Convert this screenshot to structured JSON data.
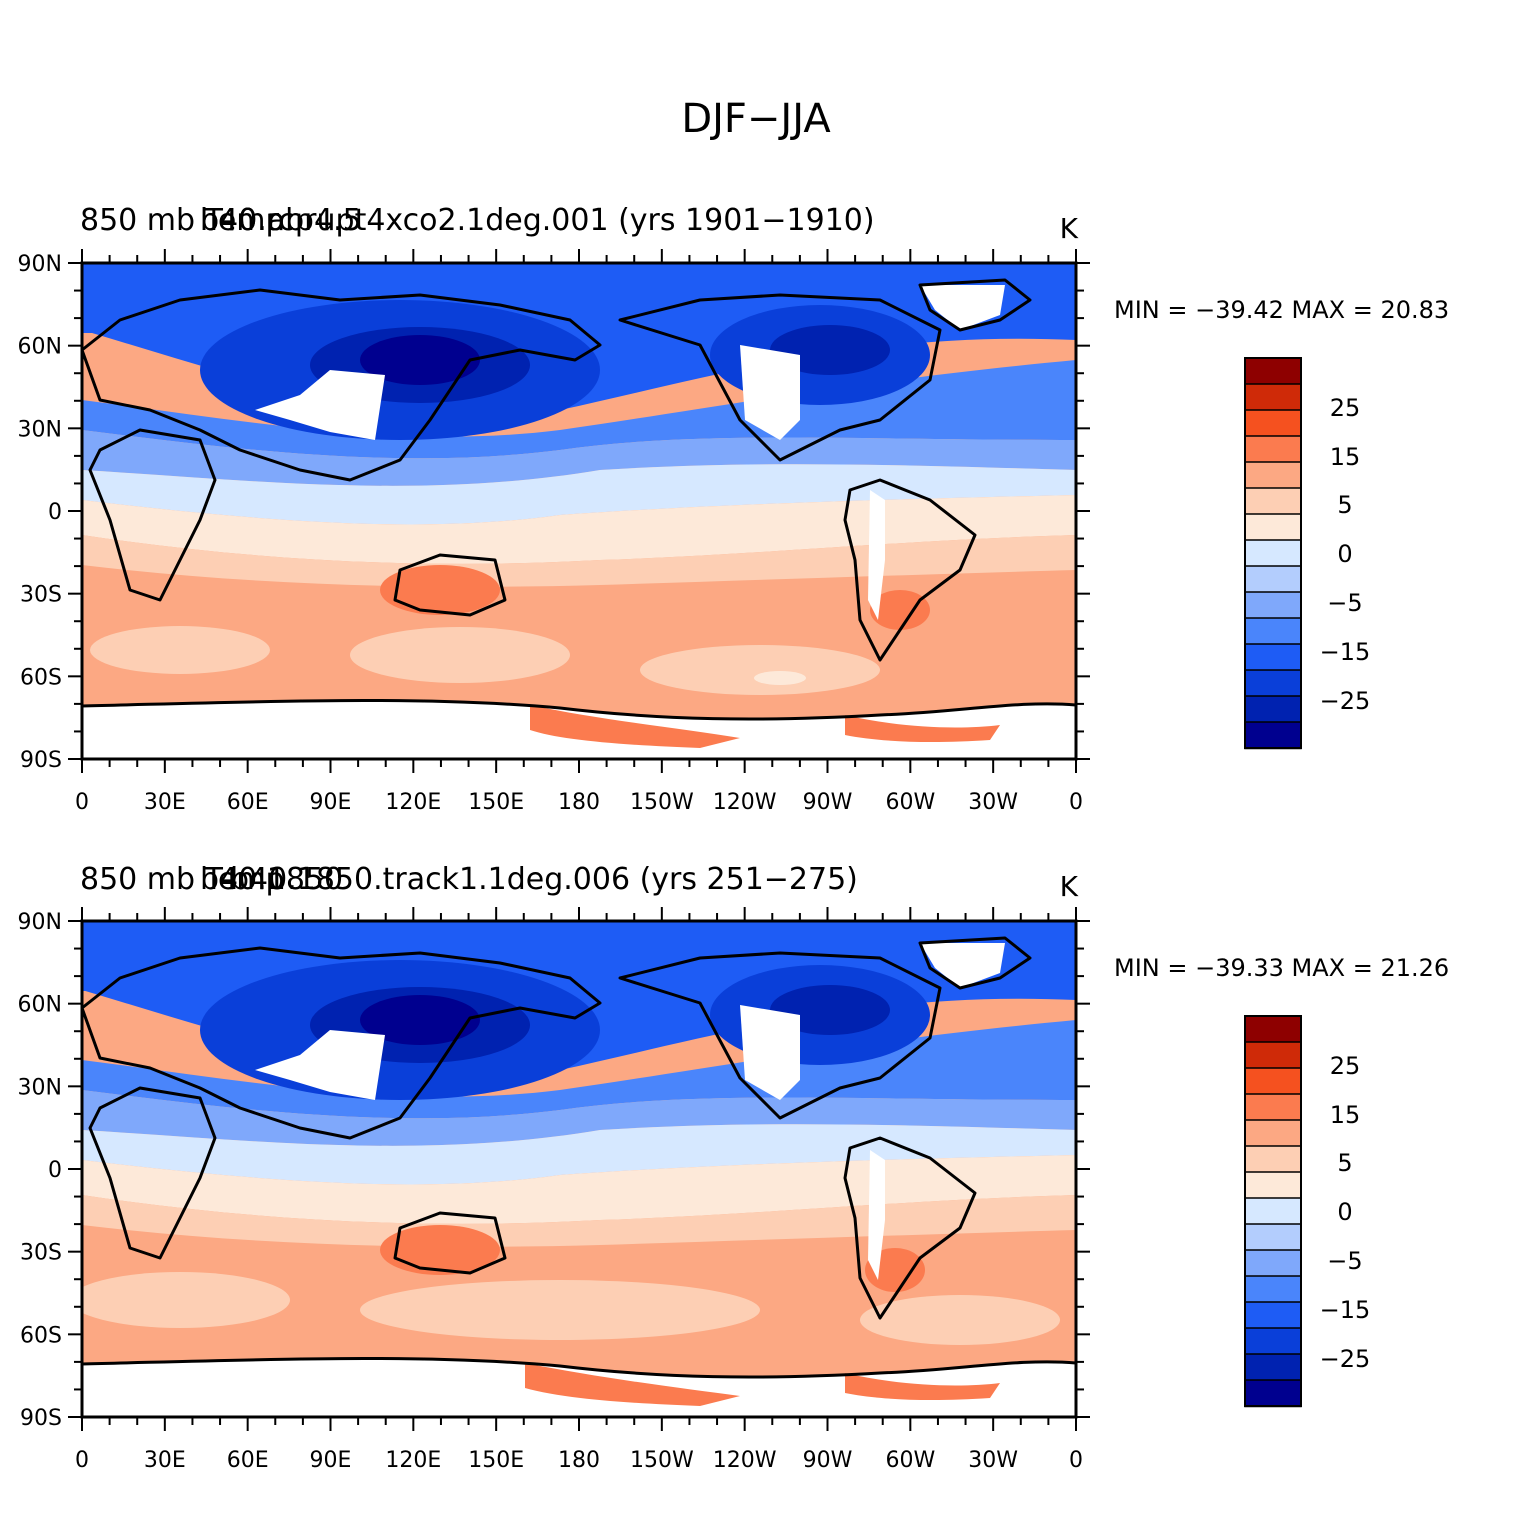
{
  "figure_title": "DJF−JJA",
  "colorbar_levels": [
    "25",
    "15",
    "5",
    "0",
    "−5",
    "−15",
    "−25"
  ],
  "colors": {
    "levels": [
      "#00008f",
      "#0022b0",
      "#0a3fd9",
      "#1e5cf5",
      "#4a85fb",
      "#7fa8fb",
      "#b3cdfd",
      "#d6e8ff",
      "#fde9d9",
      "#fdcfb4",
      "#fca883",
      "#fb7b4f",
      "#f5511f",
      "#cf2a08",
      "#8e0000"
    ],
    "land_masked": "#ffffff",
    "coastline": "#000000"
  },
  "chart_data": [
    {
      "type": "map",
      "title_left": "850 mb Temp",
      "title_center": "b40.rcp4.5",
      "title_run": "b40.abrupt4xco2.1deg.001 (yrs 1901−1910)",
      "units": "K",
      "stats": "MIN = −39.42  MAX =   20.83",
      "min": -39.42,
      "max": 20.83,
      "lat_ticks": [
        "90N",
        "60N",
        "30N",
        "0",
        "30S",
        "60S",
        "90S"
      ],
      "lon_ticks": [
        "0",
        "30E",
        "60E",
        "90E",
        "120E",
        "150E",
        "180",
        "150W",
        "120W",
        "90W",
        "60W",
        "30W",
        "0"
      ]
    },
    {
      "type": "map",
      "title_left": "850 mb Temp",
      "title_center": "b40.1850",
      "title_run": "b40.1850.track1.1deg.006 (yrs 251−275)",
      "units": "K",
      "stats": "MIN = −39.33  MAX =   21.26",
      "min": -39.33,
      "max": 21.26,
      "lat_ticks": [
        "90N",
        "60N",
        "30N",
        "0",
        "30S",
        "60S",
        "90S"
      ],
      "lon_ticks": [
        "0",
        "30E",
        "60E",
        "90E",
        "120E",
        "150E",
        "180",
        "150W",
        "120W",
        "90W",
        "60W",
        "30W",
        "0"
      ]
    }
  ]
}
